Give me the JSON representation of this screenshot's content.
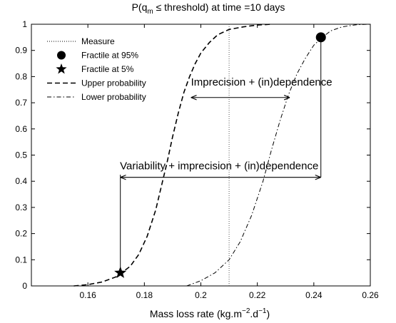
{
  "chart_data": {
    "type": "line",
    "title_parts": {
      "pre": "P(q",
      "sub": "m",
      "post": " ≤ threshold) at time =10 days"
    },
    "xlabel_parts": {
      "pre": "Mass loss rate (kg.m",
      "sup1": "−2",
      "mid": ".d",
      "sup2": "−1",
      "post": ")"
    },
    "ylabel": "",
    "xlim": [
      0.14,
      0.26
    ],
    "ylim": [
      0,
      1
    ],
    "x_ticks": [
      0.16,
      0.18,
      0.2,
      0.22,
      0.24,
      0.26
    ],
    "x_tick_labels": [
      "0.16",
      "0.18",
      "0.2",
      "0.22",
      "0.24",
      "0.26"
    ],
    "y_ticks": [
      0,
      0.1,
      0.2,
      0.3,
      0.4,
      0.5,
      0.6,
      0.7,
      0.8,
      0.9,
      1
    ],
    "y_tick_labels": [
      "0",
      "0.1",
      "0.2",
      "0.3",
      "0.4",
      "0.5",
      "0.6",
      "0.7",
      "0.8",
      "0.9",
      "1"
    ],
    "legend_position": "top-left",
    "legend": [
      {
        "label": "Measure",
        "style": "dotted"
      },
      {
        "label": "Fractile at 95%",
        "style": "circle-marker"
      },
      {
        "label": "Fractile at 5%",
        "style": "star-marker"
      },
      {
        "label": "Upper probability",
        "style": "dashed"
      },
      {
        "label": "Lower probability",
        "style": "dash-dot"
      }
    ],
    "measure_x": 0.21,
    "series": [
      {
        "name": "Upper probability",
        "style": "dashed",
        "x": [
          0.155,
          0.16,
          0.165,
          0.17,
          0.175,
          0.178,
          0.181,
          0.184,
          0.186,
          0.188,
          0.19,
          0.192,
          0.194,
          0.196,
          0.198,
          0.2,
          0.203,
          0.206,
          0.21,
          0.215,
          0.22,
          0.225
        ],
        "y": [
          0.0,
          0.005,
          0.015,
          0.035,
          0.075,
          0.12,
          0.19,
          0.29,
          0.38,
          0.47,
          0.57,
          0.66,
          0.74,
          0.8,
          0.85,
          0.89,
          0.93,
          0.96,
          0.98,
          0.99,
          0.997,
          1.0
        ]
      },
      {
        "name": "Lower probability",
        "style": "dash-dot",
        "x": [
          0.195,
          0.2,
          0.205,
          0.21,
          0.214,
          0.218,
          0.222,
          0.225,
          0.228,
          0.231,
          0.234,
          0.237,
          0.24,
          0.243,
          0.246,
          0.25,
          0.255,
          0.26
        ],
        "y": [
          0.0,
          0.02,
          0.05,
          0.1,
          0.17,
          0.27,
          0.4,
          0.52,
          0.63,
          0.73,
          0.81,
          0.87,
          0.92,
          0.95,
          0.975,
          0.99,
          0.998,
          1.0
        ]
      }
    ],
    "markers": [
      {
        "name": "Fractile at 95%",
        "shape": "circle",
        "x": 0.2425,
        "y": 0.95
      },
      {
        "name": "Fractile at 5%",
        "shape": "star",
        "x": 0.1715,
        "y": 0.05
      }
    ],
    "annotations": [
      {
        "text": "Imprecision + (in)dependence",
        "text_x": 0.2215,
        "text_y": 0.765,
        "arrow_x": [
          0.1965,
          0.2315
        ],
        "arrow_y": 0.72
      },
      {
        "text": "Variability + imprecision + (in)dependence",
        "text_x": 0.2065,
        "text_y": 0.445,
        "arrow_x": [
          0.1715,
          0.2425
        ],
        "arrow_y": 0.415
      }
    ],
    "vertical_guides": [
      {
        "x": 0.1715,
        "y": [
          0.05,
          0.425
        ]
      },
      {
        "x": 0.2425,
        "y": [
          0.415,
          0.95
        ]
      }
    ]
  }
}
